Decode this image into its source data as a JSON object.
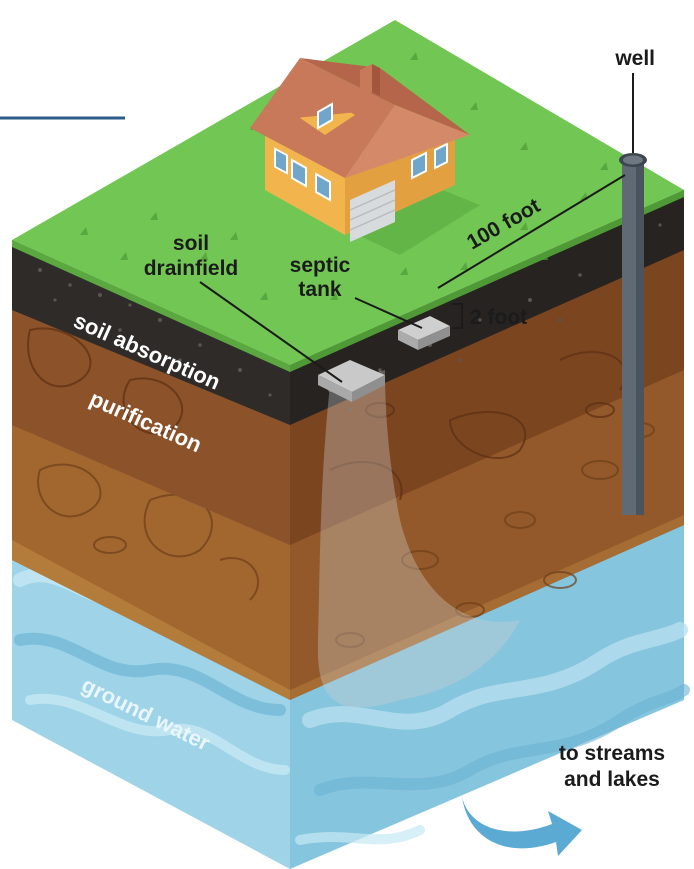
{
  "labels": {
    "well": "well",
    "distance_100": "100 foot",
    "soil_drainfield_line1": "soil",
    "soil_drainfield_line2": "drainfield",
    "septic_tank_line1": "septic",
    "septic_tank_line2": "tank",
    "distance_2": "2 foot",
    "soil_absorption": "soil absorption",
    "purification": "purification",
    "ground_water": "ground water",
    "to_streams_line1": "to streams",
    "to_streams_line2": "and lakes"
  },
  "icons": {
    "house": "house-icon",
    "well": "well-pipe-icon",
    "flow_arrow": "curved-arrow-icon"
  },
  "colors": {
    "grass_top": "#72c754",
    "grass_dark": "#5fb046",
    "dark_soil": "#2c2a28",
    "brown_soil": "#8a5329",
    "brown_soil_side": "#7a4620",
    "tan_soil": "#a86d33",
    "water_light": "#9fd3e8",
    "water_mid": "#7bbfdc",
    "water_side": "#88c6de",
    "roof": "#c8795a",
    "house_wall": "#f2b950",
    "arrow_blue": "#5aaad4",
    "accent_line": "#2e5c8a"
  }
}
